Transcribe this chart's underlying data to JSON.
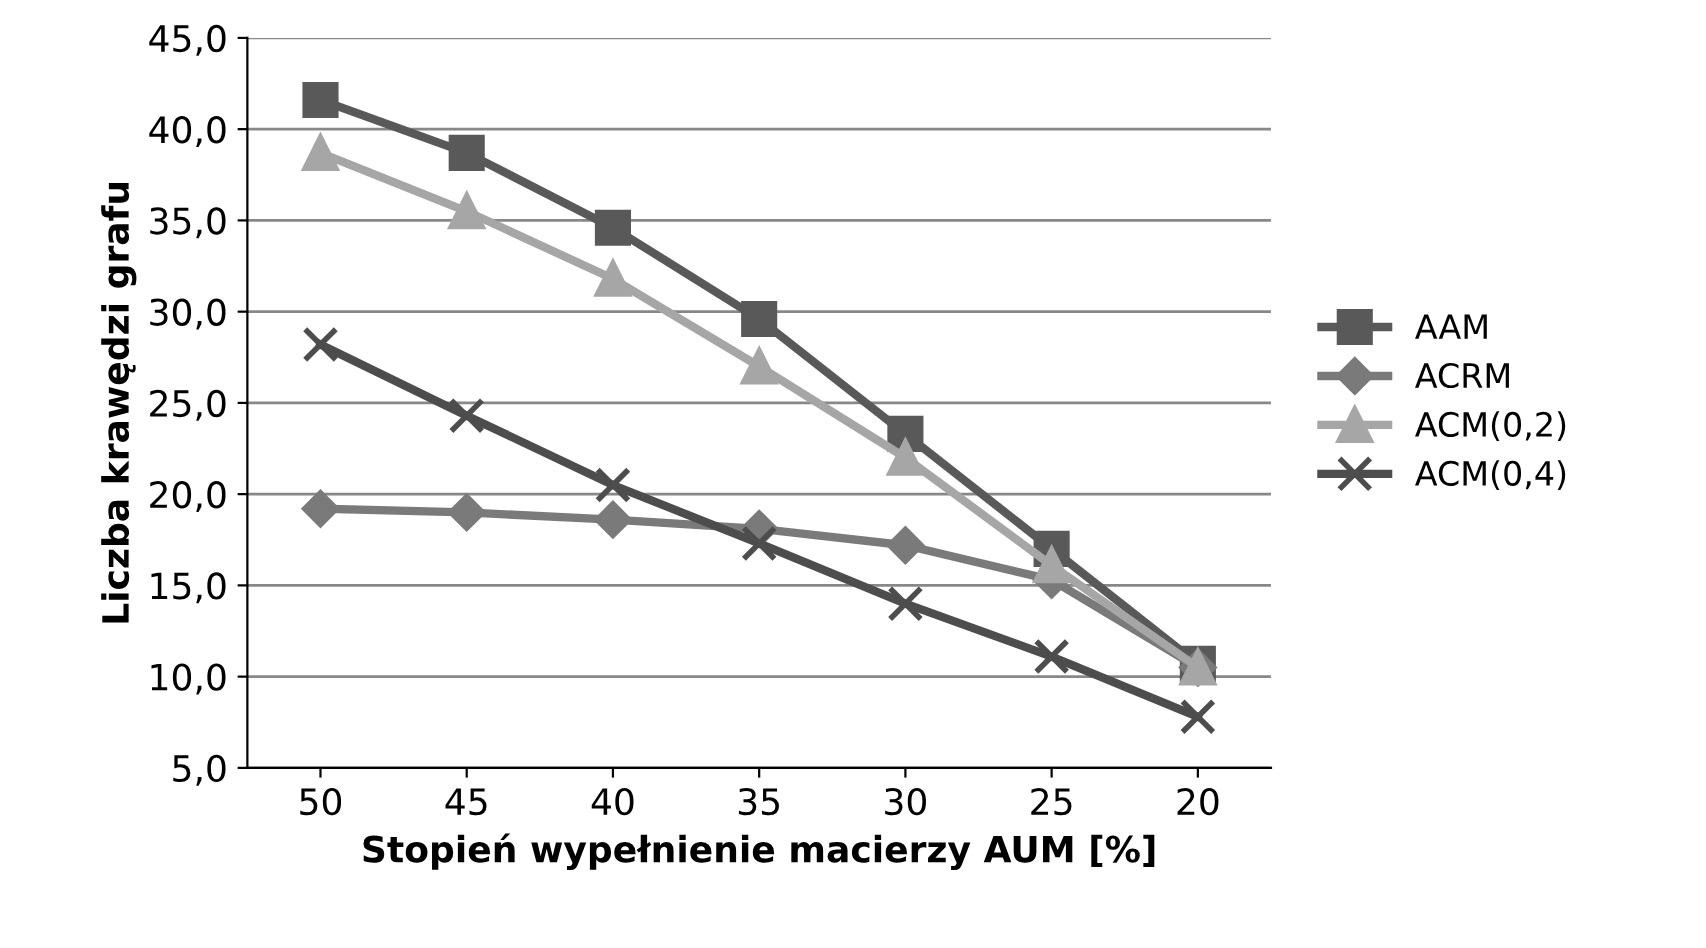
{
  "chart_data": {
    "type": "line",
    "xlabel": "Stopień wypełnienie macierzy AUM [%]",
    "ylabel": "Liczba krawędzi grafu",
    "categories": [
      "50",
      "45",
      "40",
      "35",
      "30",
      "25",
      "20"
    ],
    "ylim": [
      5,
      45
    ],
    "yticks": [
      {
        "value": 5,
        "label": "5,0"
      },
      {
        "value": 10,
        "label": "10,0"
      },
      {
        "value": 15,
        "label": "15,0"
      },
      {
        "value": 20,
        "label": "20,0"
      },
      {
        "value": 25,
        "label": "25,0"
      },
      {
        "value": 30,
        "label": "30,0"
      },
      {
        "value": 35,
        "label": "35,0"
      },
      {
        "value": 40,
        "label": "40,0"
      },
      {
        "value": 45,
        "label": "45,0"
      }
    ],
    "grid": "y",
    "legend": "right",
    "series": [
      {
        "name": "AAM",
        "color": "#595959",
        "marker": "square",
        "values": [
          41.6,
          38.7,
          34.6,
          29.6,
          23.3,
          17.0,
          10.7
        ]
      },
      {
        "name": "ACRM",
        "color": "#7a7a7a",
        "marker": "diamond",
        "values": [
          19.2,
          19.0,
          18.6,
          18.1,
          17.2,
          15.3,
          10.5
        ]
      },
      {
        "name": "ACM(0,2)",
        "color": "#a6a6a6",
        "marker": "triangle",
        "values": [
          38.7,
          35.5,
          31.8,
          27.0,
          22.0,
          16.1,
          10.5
        ]
      },
      {
        "name": "ACM(0,4)",
        "color": "#4d4d4d",
        "marker": "cross",
        "values": [
          28.2,
          24.3,
          20.5,
          17.3,
          14.0,
          11.1,
          7.8
        ]
      }
    ]
  }
}
